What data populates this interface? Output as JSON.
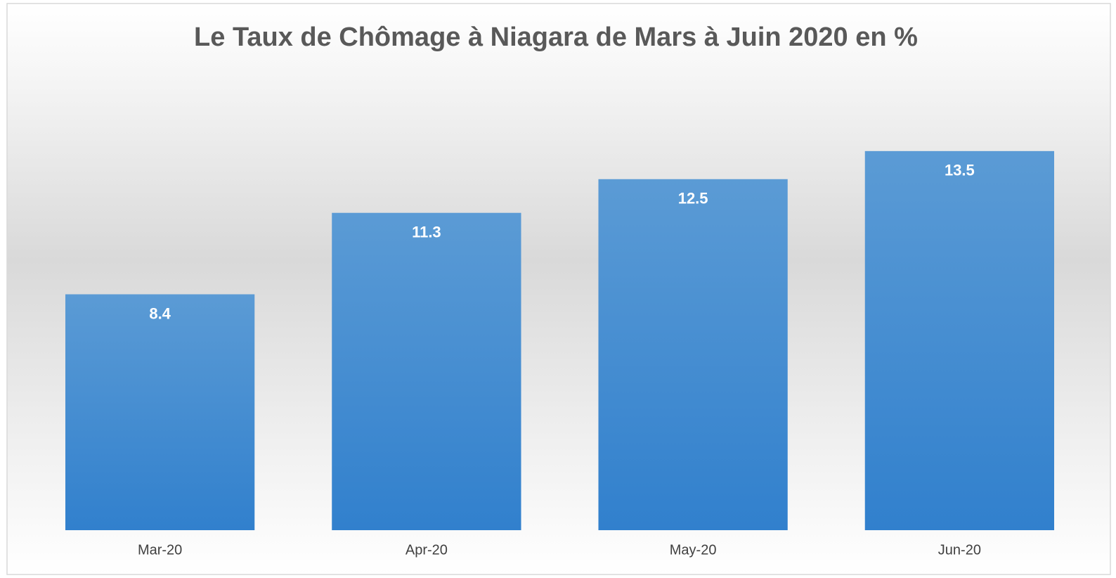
{
  "chart_data": {
    "type": "bar",
    "title": "Le Taux de Chômage à Niagara de Mars à Juin 2020 en %",
    "categories": [
      "Mar-20",
      "Apr-20",
      "May-20",
      "Jun-20"
    ],
    "values": [
      8.4,
      11.3,
      12.5,
      13.5
    ],
    "color": "#3a87d1",
    "ylim": [
      0,
      16
    ],
    "grid": false
  }
}
